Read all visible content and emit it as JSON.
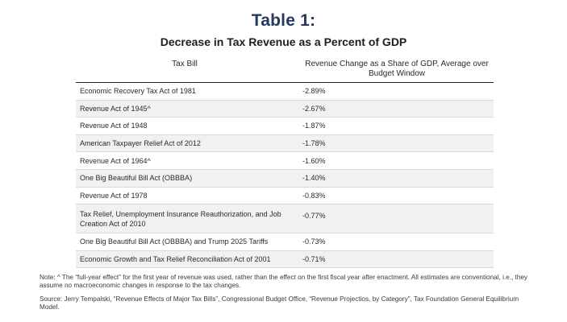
{
  "title": "Table 1:",
  "subtitle": "Decrease in Tax Revenue as a Percent of GDP",
  "columns": {
    "bill": "Tax Bill",
    "change": "Revenue Change as a Share of GDP, Average over Budget Window"
  },
  "rows": [
    {
      "bill": "Economic Recovery Tax Act of 1981",
      "value": "-2.89%"
    },
    {
      "bill": "Revenue Act of 1945^",
      "value": "-2.67%"
    },
    {
      "bill": "Revenue Act of 1948",
      "value": "-1.87%"
    },
    {
      "bill": "American Taxpayer Relief Act of 2012",
      "value": "-1.78%"
    },
    {
      "bill": "Revenue Act of 1964^",
      "value": "-1.60%"
    },
    {
      "bill": "One Big Beautiful Bill Act (OBBBA)",
      "value": "-1.40%"
    },
    {
      "bill": "Revenue Act of 1978",
      "value": "-0.83%"
    },
    {
      "bill": "Tax Relief, Unemployment Insurance Reauthorization, and Job Creation Act of 2010",
      "value": "-0.77%"
    },
    {
      "bill": "One Big Beautiful Bill Act (OBBBA) and Trump 2025 Tariffs",
      "value": "-0.73%"
    },
    {
      "bill": "Economic Growth and Tax Relief Reconciliation Act of 2001",
      "value": "-0.71%"
    }
  ],
  "note": "Note: ^ The “full-year effect” for the first year of revenue was used, rather than the effect on the first fiscal year after enactment. All estimates are conventional, i.e., they assume no macroeconomic changes in response to the tax changes.",
  "source": "Source: Jerry Tempalski, “Revenue Effects of Major Tax Bills”, Congressional Budget Office, “Revenue Projectios, by Category”, Tax Foundation General Equilibrium Model."
}
